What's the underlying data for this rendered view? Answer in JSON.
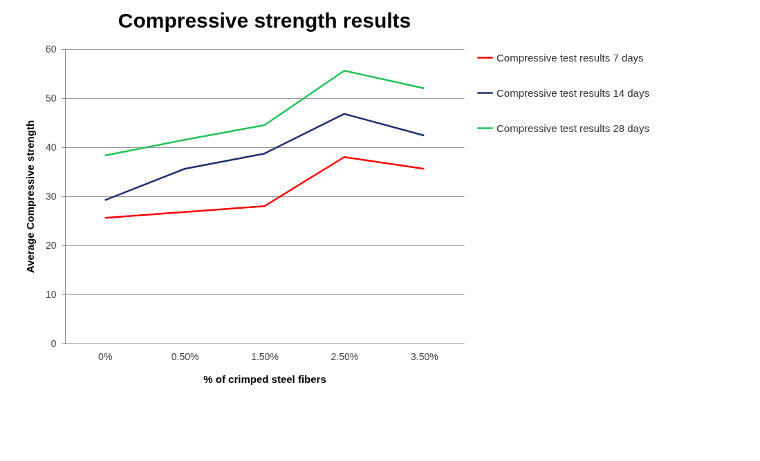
{
  "chart_data": {
    "type": "line",
    "title": "Compressive strength results",
    "xlabel": "% of crimped steel fibers",
    "ylabel": "Average Compressive strength",
    "categories": [
      "0%",
      "0.50%",
      "1.50%",
      "2.50%",
      "3.50%"
    ],
    "series": [
      {
        "name": "Compressive test results 7 days",
        "color": "#ff0000",
        "values": [
          25.6,
          26.8,
          28.0,
          38.0,
          35.6
        ]
      },
      {
        "name": "Compressive test results 14 days",
        "color": "#1f2f6e",
        "values": [
          29.2,
          35.6,
          38.7,
          46.8,
          42.4
        ]
      },
      {
        "name": "Compressive test results 28 days",
        "color": "#22c35a",
        "values": [
          38.3,
          41.5,
          44.5,
          55.6,
          52.0
        ]
      }
    ],
    "ylim": [
      0,
      60
    ],
    "yticks": [
      0,
      10,
      20,
      30,
      40,
      50,
      60
    ],
    "grid": "y",
    "legend": "right",
    "marker": "none",
    "line_style": "solid"
  }
}
